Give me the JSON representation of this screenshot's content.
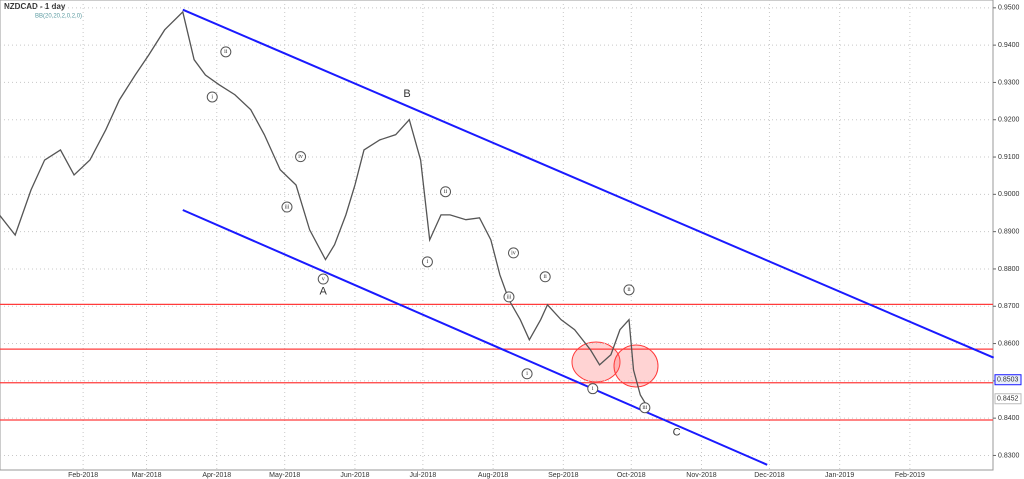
{
  "chart_data": {
    "type": "line",
    "title": "NZDCAD - 1 day",
    "subtitle": "BB(20,20,2,0,2,0)",
    "xlim": [
      -5.7,
      432.7
    ],
    "ylim": [
      0.8261,
      0.9521
    ],
    "xticks": [
      {
        "value": 31,
        "label": "Feb-2018"
      },
      {
        "value": 59,
        "label": "Mar-2018"
      },
      {
        "value": 90,
        "label": "Apr-2018"
      },
      {
        "value": 120,
        "label": "May-2018"
      },
      {
        "value": 151,
        "label": "Jun-2018"
      },
      {
        "value": 181,
        "label": "Jul-2018"
      },
      {
        "value": 212,
        "label": "Aug-2018"
      },
      {
        "value": 243,
        "label": "Sep-2018"
      },
      {
        "value": 273,
        "label": "Oct-2018"
      },
      {
        "value": 304,
        "label": "Nov-2018"
      },
      {
        "value": 334,
        "label": "Dec-2018"
      },
      {
        "value": 365,
        "label": "Jan-2019"
      },
      {
        "value": 396,
        "label": "Feb-2019"
      }
    ],
    "yticks": [
      {
        "value": 0.95,
        "label": "0.9500"
      },
      {
        "value": 0.94,
        "label": "0.9400"
      },
      {
        "value": 0.93,
        "label": "0.9300"
      },
      {
        "value": 0.92,
        "label": "0.9200"
      },
      {
        "value": 0.91,
        "label": "0.9100"
      },
      {
        "value": 0.9,
        "label": "0.9000"
      },
      {
        "value": 0.89,
        "label": "0.8900"
      },
      {
        "value": 0.88,
        "label": "0.8800"
      },
      {
        "value": 0.87,
        "label": "0.8700"
      },
      {
        "value": 0.86,
        "label": "0.8600"
      },
      {
        "value": 0.85,
        "label": "0.8500"
      },
      {
        "value": 0.84,
        "label": "0.8400"
      },
      {
        "value": 0.83,
        "label": "0.8300"
      }
    ],
    "grid": true,
    "series": [
      {
        "name": "NZDCAD",
        "color": "#555555",
        "x": [
          -6,
          1,
          8,
          14,
          21,
          27,
          34,
          41,
          47,
          54,
          60,
          67,
          75,
          80,
          85,
          91,
          98,
          105,
          111,
          118,
          125,
          131,
          138,
          142,
          147,
          151,
          155,
          162,
          169,
          175,
          180,
          184,
          189,
          193,
          200,
          206,
          211,
          215,
          219,
          224,
          228,
          233,
          236,
          242,
          248,
          255,
          259,
          264,
          268,
          272,
          274,
          277,
          281
        ],
        "values": [
          0.8945,
          0.8891,
          0.9012,
          0.9092,
          0.9119,
          0.9052,
          0.9092,
          0.9173,
          0.9253,
          0.932,
          0.9374,
          0.9441,
          0.9489,
          0.9361,
          0.932,
          0.9294,
          0.9267,
          0.9227,
          0.916,
          0.9066,
          0.9025,
          0.8905,
          0.8825,
          0.8865,
          0.8945,
          0.9025,
          0.9119,
          0.9146,
          0.916,
          0.92,
          0.9092,
          0.8878,
          0.8945,
          0.8945,
          0.8932,
          0.8937,
          0.8878,
          0.8784,
          0.8717,
          0.8664,
          0.861,
          0.8664,
          0.8704,
          0.8664,
          0.8637,
          0.8583,
          0.8543,
          0.857,
          0.8637,
          0.8664,
          0.8529,
          0.8462,
          0.8422
        ]
      }
    ],
    "levels": {
      "color": "#ff3b3b",
      "values": [
        0.8705,
        0.8585,
        0.8495,
        0.8395
      ]
    },
    "channels": {
      "color": "#1a1aff",
      "lines": [
        {
          "x": [
            75,
            433
          ],
          "values": [
            0.9495,
            0.8562
          ]
        },
        {
          "x": [
            75,
            333
          ],
          "values": [
            0.8958,
            0.8275
          ]
        }
      ]
    },
    "price_labels": [
      {
        "value": 0.8503,
        "label": "0.8503"
      },
      {
        "value": 0.8452,
        "label": "0.8452"
      }
    ],
    "annotations": [
      {
        "text": "A",
        "x": 137,
        "y": 0.8739
      },
      {
        "text": "B",
        "x": 174,
        "y": 0.9269
      },
      {
        "text": "C",
        "x": 293,
        "y": 0.8361
      },
      {
        "text": "i",
        "x": 88,
        "y": 0.9261
      },
      {
        "text": "ii",
        "x": 94,
        "y": 0.9382
      },
      {
        "text": "iii",
        "x": 121,
        "y": 0.8966
      },
      {
        "text": "iv",
        "x": 127,
        "y": 0.9101
      },
      {
        "text": "v",
        "x": 137,
        "y": 0.8773
      },
      {
        "text": "i",
        "x": 183,
        "y": 0.8819
      },
      {
        "text": "ii",
        "x": 191,
        "y": 0.9007
      },
      {
        "text": "iii",
        "x": 219,
        "y": 0.8725
      },
      {
        "text": "iv",
        "x": 221,
        "y": 0.8843
      },
      {
        "text": "i",
        "x": 227,
        "y": 0.8519
      },
      {
        "text": "ii",
        "x": 235,
        "y": 0.8779
      },
      {
        "text": "i",
        "x": 256,
        "y": 0.8479
      },
      {
        "text": "ii",
        "x": 272,
        "y": 0.8744
      },
      {
        "text": "iii",
        "x": 279,
        "y": 0.8428
      }
    ]
  }
}
